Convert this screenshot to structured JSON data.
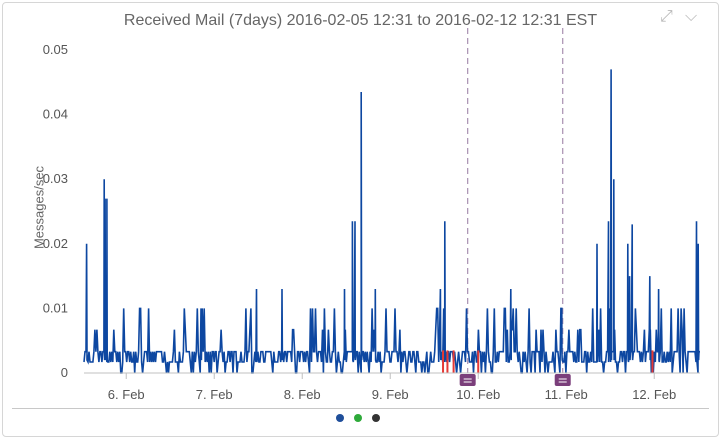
{
  "panel": {
    "title": "Received Mail (7days) 2016-02-05 12:31 to 2016-02-12 12:31 EST",
    "expand_icon": "expand-arrows-icon",
    "menu_icon": "chevron-down-icon"
  },
  "pager": {
    "dots": [
      {
        "color": "#1f4e9a",
        "state": "active"
      },
      {
        "color": "#2eaa3a",
        "state": "inactive"
      },
      {
        "color": "#333333",
        "state": "inactive"
      }
    ]
  },
  "chart_data": {
    "type": "line",
    "ylabel": "Messages/sec",
    "yticks": [
      "0",
      "0.01",
      "0.02",
      "0.03",
      "0.04",
      "0.05"
    ],
    "ylim": [
      0,
      0.05
    ],
    "xlim_days": [
      5.52,
      12.52
    ],
    "xticks": [
      {
        "label": "6. Feb",
        "day": 6
      },
      {
        "label": "7. Feb",
        "day": 7
      },
      {
        "label": "8. Feb",
        "day": 8
      },
      {
        "label": "9. Feb",
        "day": 9
      },
      {
        "label": "10. Feb",
        "day": 10
      },
      {
        "label": "11. Feb",
        "day": 11
      },
      {
        "label": "12. Feb",
        "day": 12
      }
    ],
    "series_color": "#0d47a1",
    "alert_color": "#e53935",
    "annotation_color": "#7b3f7b",
    "annotations": [
      {
        "day": 9.88,
        "icon": "event-note-icon"
      },
      {
        "day": 10.96,
        "icon": "event-note-icon"
      }
    ],
    "peaks": [
      {
        "day": 5.55,
        "value": 0.02
      },
      {
        "day": 5.75,
        "value": 0.03
      },
      {
        "day": 5.76,
        "value": 0.027
      },
      {
        "day": 5.78,
        "value": 0.027
      },
      {
        "day": 6.85,
        "value": 0.01
      },
      {
        "day": 7.48,
        "value": 0.013
      },
      {
        "day": 7.77,
        "value": 0.013
      },
      {
        "day": 8.48,
        "value": 0.013
      },
      {
        "day": 8.57,
        "value": 0.0235
      },
      {
        "day": 8.6,
        "value": 0.0235
      },
      {
        "day": 8.67,
        "value": 0.0435
      },
      {
        "day": 8.83,
        "value": 0.013
      },
      {
        "day": 9.62,
        "value": 0.0235
      },
      {
        "day": 9.57,
        "value": 0.013
      },
      {
        "day": 10.37,
        "value": 0.013
      },
      {
        "day": 10.95,
        "value": 0.01
      },
      {
        "day": 11.35,
        "value": 0.02
      },
      {
        "day": 11.48,
        "value": 0.0235
      },
      {
        "day": 11.51,
        "value": 0.047
      },
      {
        "day": 11.54,
        "value": 0.03
      },
      {
        "day": 11.7,
        "value": 0.02
      },
      {
        "day": 11.72,
        "value": 0.015
      },
      {
        "day": 11.75,
        "value": 0.023
      },
      {
        "day": 11.95,
        "value": 0.015
      },
      {
        "day": 12.05,
        "value": 0.013
      },
      {
        "day": 12.48,
        "value": 0.0235
      },
      {
        "day": 12.5,
        "value": 0.02
      }
    ],
    "alerts": [
      {
        "day": 9.6
      },
      {
        "day": 9.65
      },
      {
        "day": 9.72
      },
      {
        "day": 10.0
      },
      {
        "day": 11.98
      }
    ]
  }
}
